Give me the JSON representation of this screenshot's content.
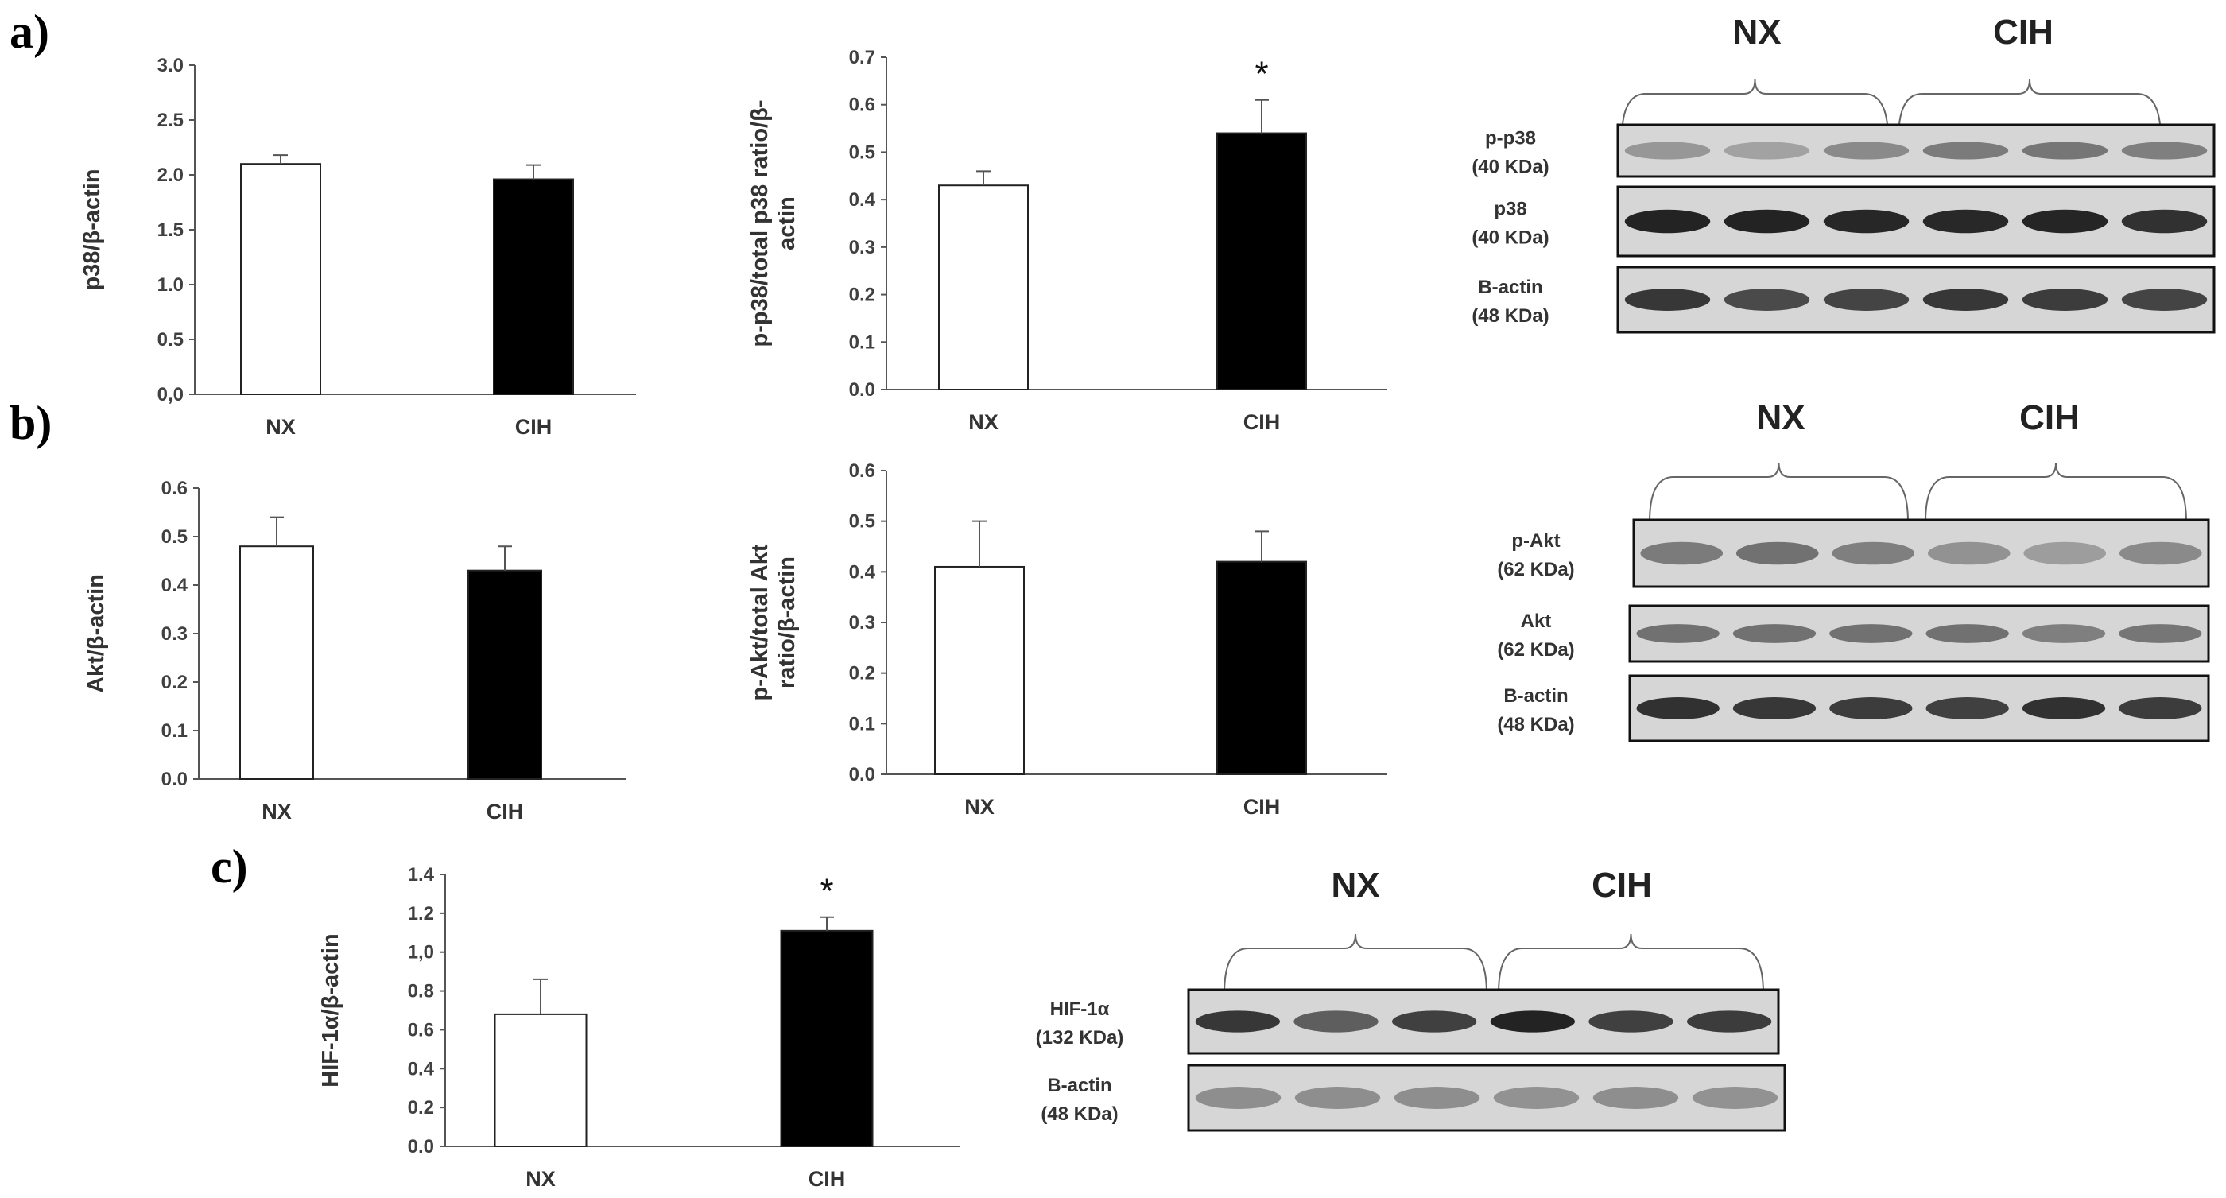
{
  "panels": [
    "a)",
    "b)",
    "c)"
  ],
  "chart_data": [
    {
      "type": "bar",
      "panel": "a)",
      "categories": [
        "NX",
        "CIH"
      ],
      "values": [
        2.1,
        1.96
      ],
      "errors": [
        0.08,
        0.13
      ],
      "ylabel": "p38/β-actin",
      "ylim": [
        0,
        3.0
      ],
      "yticks": [
        "0,0",
        "0.5",
        "1.0",
        "1.5",
        "2.0",
        "2.5",
        "3.0"
      ],
      "significance": [
        "",
        ""
      ],
      "colors": [
        "#ffffff",
        "#000000"
      ]
    },
    {
      "type": "bar",
      "panel": "a)",
      "categories": [
        "NX",
        "CIH"
      ],
      "values": [
        0.43,
        0.54
      ],
      "errors": [
        0.03,
        0.07
      ],
      "ylabel": "p-p38/total p38 ratio/β-actin",
      "ylim": [
        0,
        0.7
      ],
      "yticks": [
        "0.0",
        "0.1",
        "0.2",
        "0.3",
        "0.4",
        "0.5",
        "0.6",
        "0.7"
      ],
      "significance": [
        "",
        "*"
      ],
      "colors": [
        "#ffffff",
        "#000000"
      ]
    },
    {
      "type": "bar",
      "panel": "b)",
      "categories": [
        "NX",
        "CIH"
      ],
      "values": [
        0.48,
        0.43
      ],
      "errors": [
        0.06,
        0.05
      ],
      "ylabel": "Akt/β-actin",
      "ylim": [
        0,
        0.6
      ],
      "yticks": [
        "0.0",
        "0.1",
        "0.2",
        "0.3",
        "0.4",
        "0.5",
        "0.6"
      ],
      "significance": [
        "",
        ""
      ],
      "colors": [
        "#ffffff",
        "#000000"
      ]
    },
    {
      "type": "bar",
      "panel": "b)",
      "categories": [
        "NX",
        "CIH"
      ],
      "values": [
        0.41,
        0.42
      ],
      "errors": [
        0.09,
        0.06
      ],
      "ylabel": "p-Akt/total Akt ratio/β-actin",
      "ylim": [
        0,
        0.6
      ],
      "yticks": [
        "0.0",
        "0.1",
        "0.2",
        "0.3",
        "0.4",
        "0.5",
        "0.6"
      ],
      "significance": [
        "",
        ""
      ],
      "colors": [
        "#ffffff",
        "#000000"
      ]
    },
    {
      "type": "bar",
      "panel": "c)",
      "categories": [
        "NX",
        "CIH"
      ],
      "values": [
        0.68,
        1.11
      ],
      "errors": [
        0.18,
        0.07
      ],
      "ylabel": "HIF-1α/β-actin",
      "ylim": [
        0,
        1.4
      ],
      "yticks": [
        "0.0",
        "0.2",
        "0.4",
        "0.6",
        "0.8",
        "1,0",
        "1.2",
        "1.4"
      ],
      "significance": [
        "",
        "*"
      ],
      "colors": [
        "#ffffff",
        "#000000"
      ]
    }
  ],
  "blots": [
    {
      "panel": "a)",
      "groups": [
        "NX",
        "CIH"
      ],
      "rows": [
        {
          "protein": "p-p38",
          "weight": "(40 KDa)",
          "intensity": [
            0.35,
            0.3,
            0.42,
            0.5,
            0.52,
            0.48
          ]
        },
        {
          "protein": "p38",
          "weight": "(40 KDa)",
          "intensity": [
            0.95,
            0.95,
            0.93,
            0.92,
            0.94,
            0.88
          ]
        },
        {
          "protein": "B-actin",
          "weight": "(48 KDa)",
          "intensity": [
            0.85,
            0.75,
            0.78,
            0.85,
            0.82,
            0.78
          ]
        }
      ]
    },
    {
      "panel": "b)",
      "groups": [
        "NX",
        "CIH"
      ],
      "rows": [
        {
          "protein": "p-Akt",
          "weight": "(62 KDa)",
          "intensity": [
            0.5,
            0.55,
            0.48,
            0.38,
            0.32,
            0.42
          ]
        },
        {
          "protein": "Akt",
          "weight": "(62 KDa)",
          "intensity": [
            0.55,
            0.55,
            0.55,
            0.55,
            0.48,
            0.52
          ]
        },
        {
          "protein": "B-actin",
          "weight": "(48 KDa)",
          "intensity": [
            0.88,
            0.85,
            0.82,
            0.8,
            0.88,
            0.82
          ]
        }
      ]
    },
    {
      "panel": "c)",
      "groups": [
        "NX",
        "CIH"
      ],
      "rows": [
        {
          "protein": "HIF-1α",
          "weight": "(132 KDa)",
          "intensity": [
            0.85,
            0.65,
            0.8,
            0.95,
            0.8,
            0.82
          ]
        },
        {
          "protein": "B-actin",
          "weight": "(48 KDa)",
          "intensity": [
            0.4,
            0.4,
            0.4,
            0.38,
            0.4,
            0.38
          ]
        }
      ]
    }
  ]
}
